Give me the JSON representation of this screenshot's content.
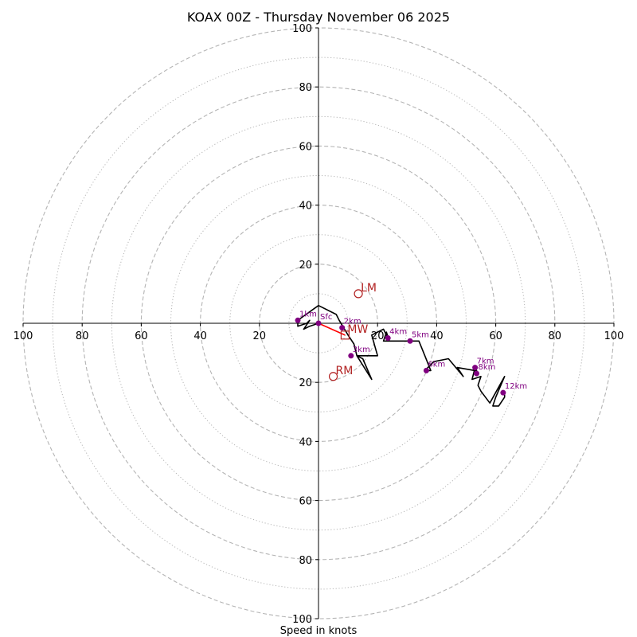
{
  "chart_data": {
    "type": "hodograph",
    "title": "KOAX 00Z - Thursday November 06 2025",
    "xlabel": "Speed in knots",
    "ylabel": "",
    "xlim": [
      -100,
      100
    ],
    "ylim": [
      -100,
      100
    ],
    "ring_major": [
      20,
      40,
      60,
      80,
      100
    ],
    "ring_minor": [
      10,
      30,
      50,
      70,
      90
    ],
    "tick_labels": {
      "right": [
        "20",
        "40",
        "60",
        "80",
        "100"
      ],
      "left": [
        "20",
        "40",
        "60",
        "80",
        "100"
      ],
      "top": [
        "20",
        "40",
        "60",
        "80",
        "100"
      ],
      "bottom": [
        "20",
        "40",
        "60",
        "80",
        "100"
      ]
    },
    "trace": {
      "u": [
        0,
        -3,
        -5,
        -3,
        -4,
        -7,
        -7,
        0,
        6,
        7,
        10,
        12,
        13,
        18,
        15,
        13,
        20,
        18,
        22,
        24,
        23,
        22,
        24,
        34,
        36,
        38,
        36,
        39,
        44,
        49,
        47,
        53,
        54,
        53,
        52,
        55,
        54,
        55,
        58,
        63,
        60,
        59,
        61,
        63,
        63,
        63
      ],
      "v": [
        0,
        -1,
        -2,
        1,
        0,
        -1,
        1,
        6,
        3,
        1,
        -4,
        -7,
        -11,
        -19,
        -12,
        -11,
        -11,
        -4,
        -2,
        -6,
        -3,
        -6,
        -6,
        -6,
        -11,
        -16,
        -16,
        -13,
        -12,
        -18,
        -15,
        -16,
        -17,
        -15,
        -19,
        -18,
        -21,
        -23,
        -27,
        -18,
        -25,
        -28,
        -28,
        -25,
        -24,
        -23
      ]
    },
    "heights": [
      {
        "label": "Sfc",
        "u": 0,
        "v": 0
      },
      {
        "label": "1km",
        "u": -7,
        "v": 1
      },
      {
        "label": "2km",
        "u": 8,
        "v": -1.5
      },
      {
        "label": "3km",
        "u": 11,
        "v": -11
      },
      {
        "label": "4km",
        "u": 23.5,
        "v": -5
      },
      {
        "label": "5km",
        "u": 31,
        "v": -6
      },
      {
        "label": "6km",
        "u": 36.5,
        "v": -16
      },
      {
        "label": "7km",
        "u": 53,
        "v": -15
      },
      {
        "label": "8km",
        "u": 53.5,
        "v": -17
      },
      {
        "label": "12km",
        "u": 62.5,
        "v": -23.5
      }
    ],
    "storm_motion": [
      {
        "label": "LM",
        "u": 13.5,
        "v": 10,
        "marker": "circle"
      },
      {
        "label": "MW",
        "u": 9,
        "v": -4,
        "marker": "square"
      },
      {
        "label": "RM",
        "u": 5,
        "v": -18,
        "marker": "circle"
      }
    ],
    "shear_vector": {
      "from": {
        "u": 0,
        "v": 0
      },
      "to": {
        "u": 9,
        "v": -4
      }
    },
    "colors": {
      "trace": "#000000",
      "height_marker": "#800080",
      "storm_motion": "#b22222",
      "shear": "#ff0000",
      "ring": "#b4b4b4"
    }
  }
}
